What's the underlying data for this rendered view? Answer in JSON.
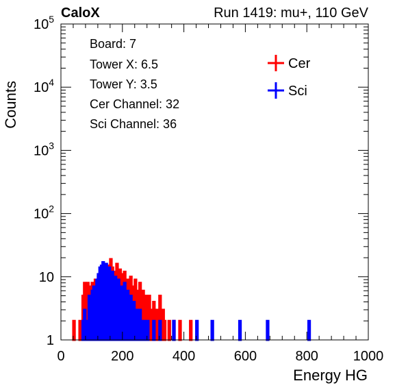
{
  "header": {
    "left": "CaloX",
    "right": "Run 1419: mu+, 110 GeV"
  },
  "info_box": [
    "Board: 7",
    "Tower X: 6.5",
    "Tower Y: 3.5",
    "Cer Channel: 32",
    "Sci Channel: 36"
  ],
  "chart_data": {
    "type": "histogram",
    "xlabel": "Energy HG",
    "ylabel": "Counts",
    "xlim": [
      0,
      1000
    ],
    "ylim": [
      1,
      100000
    ],
    "yscale": "log",
    "x_ticks": [
      "0",
      "200",
      "400",
      "600",
      "800",
      "1000"
    ],
    "y_ticks": [
      "1",
      "10",
      "10^2",
      "10^3",
      "10^4",
      "10^5"
    ],
    "legend_position": "top-right",
    "series": [
      {
        "name": "Cer",
        "color": "#ff0000",
        "bins": [
          [
            30,
            1
          ],
          [
            35,
            1
          ],
          [
            40,
            2
          ],
          [
            45,
            1
          ],
          [
            55,
            1
          ],
          [
            60,
            2
          ],
          [
            70,
            5
          ],
          [
            75,
            8
          ],
          [
            80,
            3
          ],
          [
            85,
            8
          ],
          [
            90,
            2
          ],
          [
            95,
            7
          ],
          [
            100,
            8
          ],
          [
            105,
            4
          ],
          [
            110,
            9
          ],
          [
            115,
            7
          ],
          [
            120,
            10
          ],
          [
            125,
            6
          ],
          [
            130,
            11
          ],
          [
            135,
            14
          ],
          [
            140,
            12
          ],
          [
            145,
            9
          ],
          [
            150,
            13
          ],
          [
            155,
            15
          ],
          [
            160,
            19
          ],
          [
            165,
            14
          ],
          [
            170,
            12
          ],
          [
            175,
            11
          ],
          [
            180,
            16
          ],
          [
            185,
            8
          ],
          [
            190,
            13
          ],
          [
            195,
            6
          ],
          [
            200,
            11
          ],
          [
            205,
            12
          ],
          [
            210,
            7
          ],
          [
            215,
            9
          ],
          [
            220,
            6
          ],
          [
            225,
            10
          ],
          [
            230,
            4
          ],
          [
            235,
            7
          ],
          [
            240,
            9
          ],
          [
            245,
            3
          ],
          [
            250,
            6
          ],
          [
            255,
            8
          ],
          [
            260,
            4
          ],
          [
            265,
            6
          ],
          [
            270,
            2
          ],
          [
            275,
            5
          ],
          [
            280,
            3
          ],
          [
            285,
            5
          ],
          [
            290,
            2
          ],
          [
            295,
            3
          ],
          [
            300,
            4
          ],
          [
            305,
            2
          ],
          [
            310,
            3
          ],
          [
            315,
            2
          ],
          [
            320,
            5
          ],
          [
            325,
            1
          ],
          [
            330,
            3
          ],
          [
            335,
            2
          ],
          [
            340,
            1
          ],
          [
            350,
            2
          ],
          [
            360,
            1
          ],
          [
            365,
            2
          ],
          [
            380,
            1
          ],
          [
            385,
            2
          ],
          [
            400,
            1
          ],
          [
            420,
            2
          ],
          [
            425,
            1
          ],
          [
            435,
            1
          ],
          [
            450,
            1
          ],
          [
            465,
            1
          ],
          [
            490,
            1
          ]
        ]
      },
      {
        "name": "Sci",
        "color": "#0000ff",
        "bins": [
          [
            40,
            1
          ],
          [
            60,
            1
          ],
          [
            65,
            1
          ],
          [
            70,
            2
          ],
          [
            75,
            3
          ],
          [
            80,
            1
          ],
          [
            85,
            2
          ],
          [
            90,
            5
          ],
          [
            95,
            3
          ],
          [
            100,
            6
          ],
          [
            105,
            7
          ],
          [
            110,
            6
          ],
          [
            115,
            9
          ],
          [
            120,
            11
          ],
          [
            125,
            14
          ],
          [
            130,
            15
          ],
          [
            135,
            17
          ],
          [
            140,
            13
          ],
          [
            145,
            16
          ],
          [
            150,
            11
          ],
          [
            155,
            14
          ],
          [
            160,
            9
          ],
          [
            165,
            12
          ],
          [
            170,
            8
          ],
          [
            175,
            10
          ],
          [
            180,
            6
          ],
          [
            185,
            9
          ],
          [
            190,
            3
          ],
          [
            195,
            7
          ],
          [
            200,
            5
          ],
          [
            205,
            8
          ],
          [
            210,
            4
          ],
          [
            215,
            6
          ],
          [
            220,
            2
          ],
          [
            225,
            5
          ],
          [
            230,
            3
          ],
          [
            235,
            4
          ],
          [
            240,
            2
          ],
          [
            245,
            3
          ],
          [
            250,
            1
          ],
          [
            255,
            3
          ],
          [
            260,
            2
          ],
          [
            265,
            1
          ],
          [
            270,
            2
          ],
          [
            275,
            1
          ],
          [
            280,
            2
          ],
          [
            285,
            1
          ],
          [
            300,
            2
          ],
          [
            310,
            1
          ],
          [
            320,
            2
          ],
          [
            335,
            1
          ],
          [
            350,
            1
          ],
          [
            365,
            2
          ],
          [
            380,
            1
          ],
          [
            395,
            1
          ],
          [
            420,
            1
          ],
          [
            440,
            2
          ],
          [
            455,
            1
          ],
          [
            470,
            1
          ],
          [
            490,
            2
          ],
          [
            500,
            1
          ],
          [
            520,
            1
          ],
          [
            540,
            1
          ],
          [
            580,
            2
          ],
          [
            620,
            1
          ],
          [
            660,
            1
          ],
          [
            670,
            2
          ],
          [
            740,
            1
          ],
          [
            805,
            2
          ],
          [
            810,
            1
          ],
          [
            900,
            1
          ],
          [
            950,
            1
          ]
        ]
      }
    ]
  }
}
